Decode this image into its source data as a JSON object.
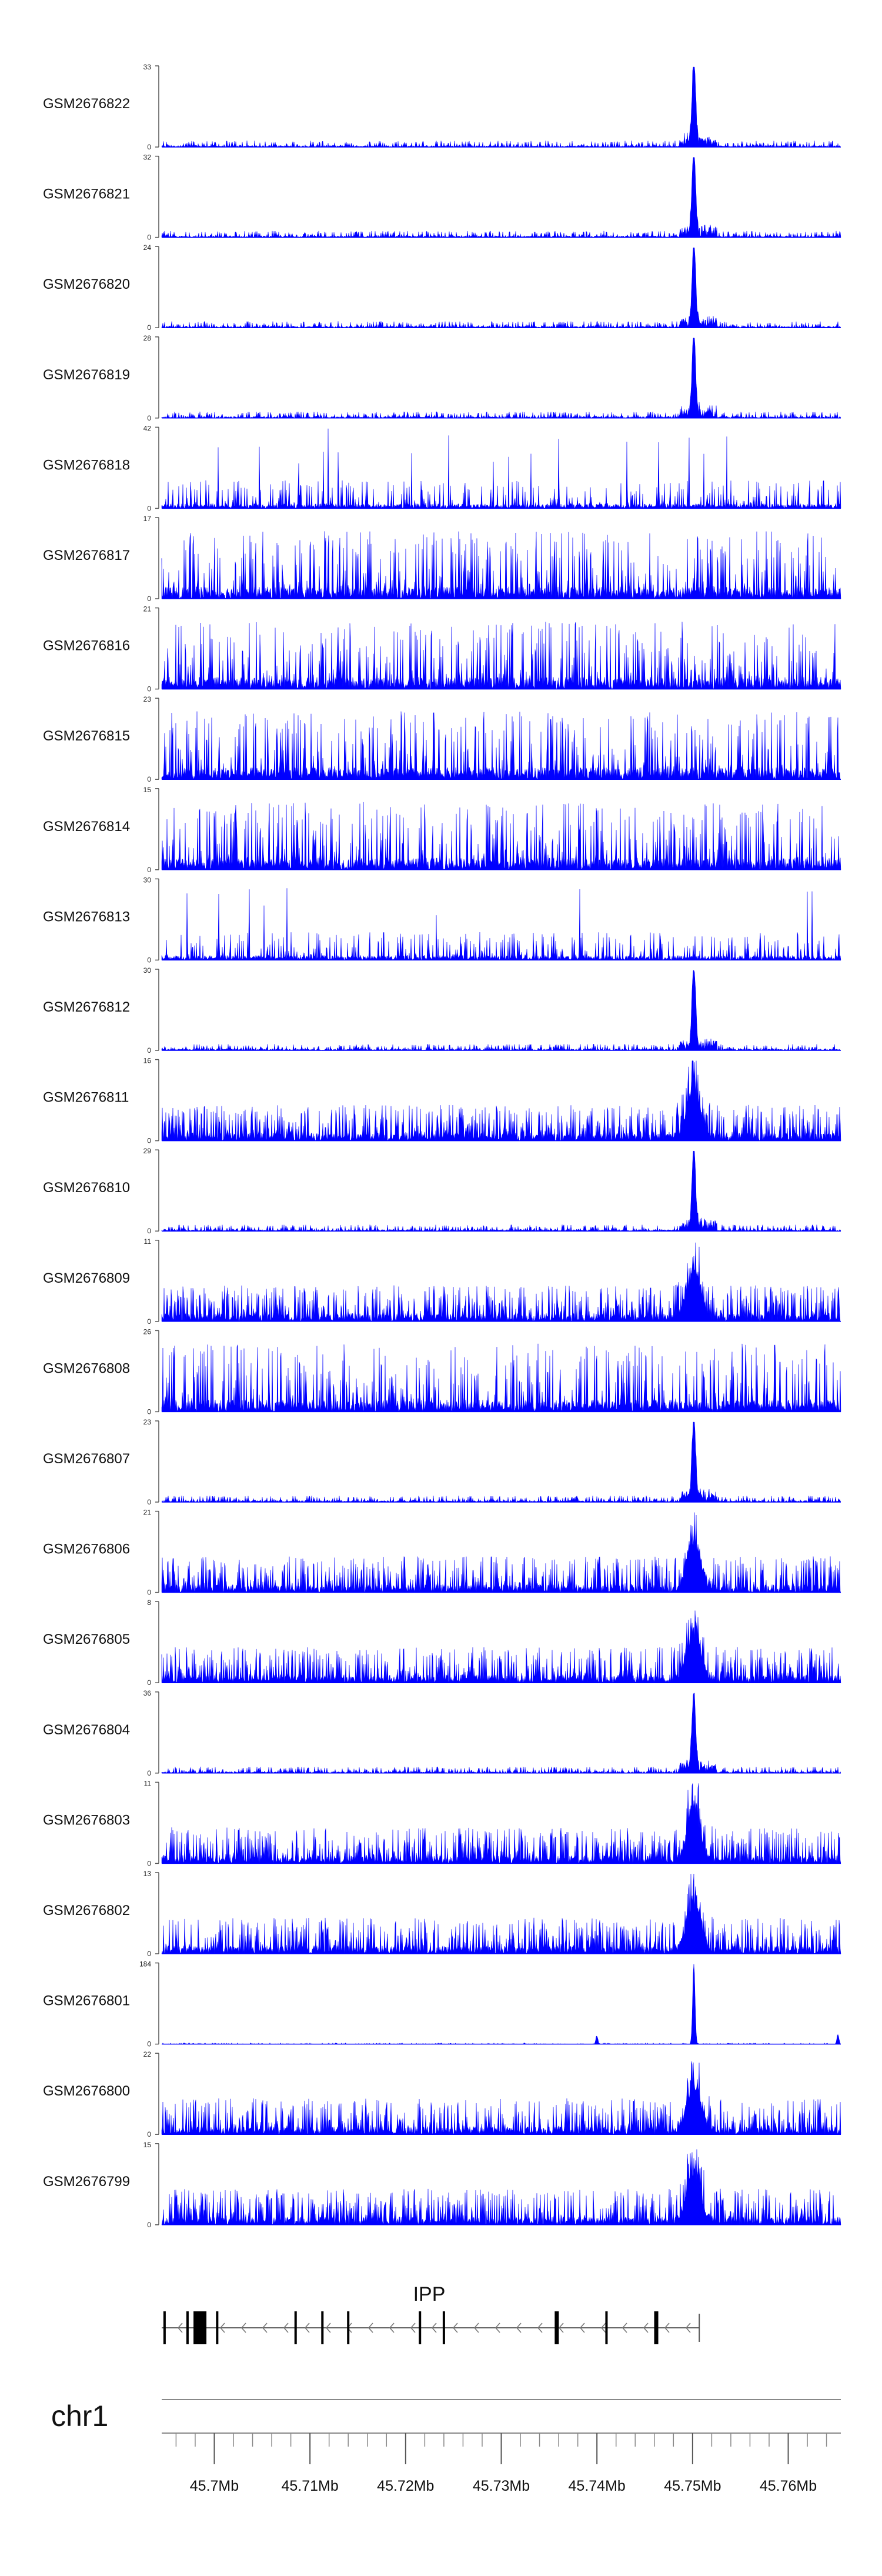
{
  "chart_data": {
    "type": "area",
    "title": "",
    "xlabel": "",
    "ylabel": "",
    "color": "#0000ff",
    "chromosome": "chr1",
    "x_range_mb": [
      45.6945,
      45.7655
    ],
    "x_ticks": [
      45.7,
      45.71,
      45.72,
      45.73,
      45.74,
      45.75,
      45.76
    ],
    "x_tick_labels": [
      "45.7Mb",
      "45.71Mb",
      "45.72Mb",
      "45.73Mb",
      "45.74Mb",
      "45.75Mb",
      "45.76Mb"
    ],
    "gene": {
      "name": "IPP",
      "strand": "-",
      "start_mb": 45.6945,
      "end_mb": 45.7507,
      "exons_mb": [
        45.6948,
        45.6972,
        45.6985,
        45.7003,
        45.7085,
        45.7113,
        45.714,
        45.7215,
        45.724,
        45.7358,
        45.741,
        45.7462
      ]
    },
    "series": [
      {
        "name": "GSM2676822",
        "ymax": 33,
        "ymin": 0,
        "pattern": "peak"
      },
      {
        "name": "GSM2676821",
        "ymax": 32,
        "ymin": 0,
        "pattern": "peak"
      },
      {
        "name": "GSM2676820",
        "ymax": 24,
        "ymin": 0,
        "pattern": "peak"
      },
      {
        "name": "GSM2676819",
        "ymax": 28,
        "ymin": 0,
        "pattern": "peak"
      },
      {
        "name": "GSM2676818",
        "ymax": 42,
        "ymin": 0,
        "pattern": "sparse"
      },
      {
        "name": "GSM2676817",
        "ymax": 17,
        "ymin": 0,
        "pattern": "noisy"
      },
      {
        "name": "GSM2676816",
        "ymax": 21,
        "ymin": 0,
        "pattern": "noisy"
      },
      {
        "name": "GSM2676815",
        "ymax": 23,
        "ymin": 0,
        "pattern": "noisy"
      },
      {
        "name": "GSM2676814",
        "ymax": 15,
        "ymin": 0,
        "pattern": "noisy"
      },
      {
        "name": "GSM2676813",
        "ymax": 30,
        "ymin": 0,
        "pattern": "sparse"
      },
      {
        "name": "GSM2676812",
        "ymax": 30,
        "ymin": 0,
        "pattern": "peak"
      },
      {
        "name": "GSM2676811",
        "ymax": 16,
        "ymin": 0,
        "pattern": "broad"
      },
      {
        "name": "GSM2676810",
        "ymax": 29,
        "ymin": 0,
        "pattern": "peak"
      },
      {
        "name": "GSM2676809",
        "ymax": 11,
        "ymin": 0,
        "pattern": "broad"
      },
      {
        "name": "GSM2676808",
        "ymax": 26,
        "ymin": 0,
        "pattern": "noisy"
      },
      {
        "name": "GSM2676807",
        "ymax": 23,
        "ymin": 0,
        "pattern": "peak"
      },
      {
        "name": "GSM2676806",
        "ymax": 21,
        "ymin": 0,
        "pattern": "broad"
      },
      {
        "name": "GSM2676805",
        "ymax": 8,
        "ymin": 0,
        "pattern": "broad"
      },
      {
        "name": "GSM2676804",
        "ymax": 36,
        "ymin": 0,
        "pattern": "peak"
      },
      {
        "name": "GSM2676803",
        "ymax": 11,
        "ymin": 0,
        "pattern": "broad"
      },
      {
        "name": "GSM2676802",
        "ymax": 13,
        "ymin": 0,
        "pattern": "broad"
      },
      {
        "name": "GSM2676801",
        "ymax": 184,
        "ymin": 0,
        "pattern": "spike"
      },
      {
        "name": "GSM2676800",
        "ymax": 22,
        "ymin": 0,
        "pattern": "broad"
      },
      {
        "name": "GSM2676799",
        "ymax": 15,
        "ymin": 0,
        "pattern": "broad"
      }
    ]
  }
}
